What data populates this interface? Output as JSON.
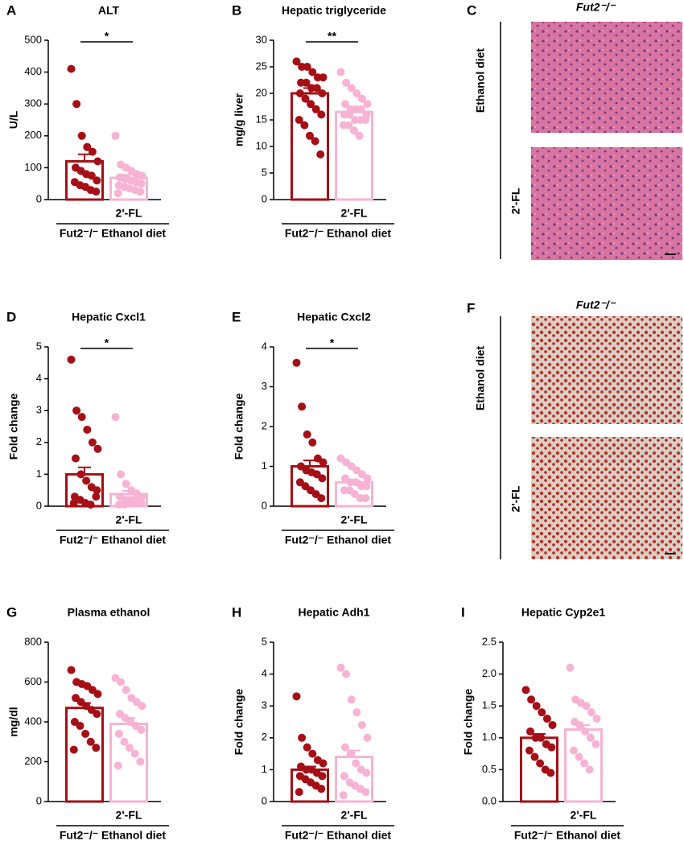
{
  "chart_data": [
    {
      "type": "bar",
      "panel": "A",
      "title": "ALT",
      "ylabel": "U/L",
      "categories": [
        null,
        "2'-FL"
      ],
      "group_label": "Fut2⁻/⁻ Ethanol diet",
      "significance": "*",
      "values": [
        120,
        68
      ],
      "errors": [
        22,
        10
      ],
      "colors": [
        "#a50f15",
        "#f7b3d3"
      ],
      "points": [
        [
          410,
          300,
          200,
          165,
          150,
          120,
          100,
          90,
          80,
          75,
          60,
          55,
          45,
          40,
          30,
          25
        ],
        [
          200,
          110,
          100,
          90,
          80,
          75,
          70,
          65,
          60,
          55,
          50,
          45,
          40,
          35,
          30,
          25,
          20
        ]
      ],
      "ylim": [
        0,
        500
      ],
      "yticks": [
        0,
        100,
        200,
        300,
        400,
        500
      ]
    },
    {
      "type": "bar",
      "panel": "B",
      "title": "Hepatic triglyceride",
      "ylabel": "mg/g liver",
      "categories": [
        null,
        "2'-FL"
      ],
      "group_label": "Fut2⁻/⁻ Ethanol diet",
      "significance": "**",
      "values": [
        20,
        16.5
      ],
      "errors": [
        1,
        0.6
      ],
      "colors": [
        "#a50f15",
        "#f7b3d3"
      ],
      "points": [
        [
          26,
          25,
          25,
          24,
          23,
          23,
          22,
          22,
          21,
          21,
          20,
          20,
          19,
          18,
          17,
          16,
          15,
          14,
          12,
          11,
          8.5
        ],
        [
          24,
          22,
          21,
          20,
          19,
          18,
          18,
          17,
          17,
          17,
          16,
          16,
          16,
          15,
          15,
          15,
          14,
          14,
          13,
          12
        ]
      ],
      "ylim": [
        0,
        30
      ],
      "yticks": [
        0,
        5,
        10,
        15,
        20,
        25,
        30
      ]
    },
    {
      "type": "bar",
      "panel": "D",
      "title": "Hepatic Cxcl1",
      "ylabel": "Fold change",
      "categories": [
        null,
        "2'-FL"
      ],
      "group_label": "Fut2⁻/⁻ Ethanol diet",
      "significance": "*",
      "values": [
        1.0,
        0.38
      ],
      "errors": [
        0.22,
        0.1
      ],
      "colors": [
        "#a50f15",
        "#f7b3d3"
      ],
      "points": [
        [
          4.6,
          3.0,
          2.8,
          2.4,
          2.0,
          1.8,
          1.5,
          1.0,
          0.8,
          0.6,
          0.5,
          0.3,
          0.2,
          0.1,
          0.05,
          0.3,
          0.1
        ],
        [
          2.8,
          1.0,
          0.7,
          0.5,
          0.4,
          0.3,
          0.3,
          0.2,
          0.2,
          0.1,
          0.1,
          0.05,
          0.05,
          0.1,
          0.2
        ]
      ],
      "ylim": [
        0,
        5
      ],
      "yticks": [
        0,
        1,
        2,
        3,
        4,
        5
      ]
    },
    {
      "type": "bar",
      "panel": "E",
      "title": "Hepatic Cxcl2",
      "ylabel": "Fold change",
      "categories": [
        null,
        "2'-FL"
      ],
      "group_label": "Fut2⁻/⁻ Ethanol diet",
      "significance": "*",
      "values": [
        1.0,
        0.6
      ],
      "errors": [
        0.15,
        0.05
      ],
      "colors": [
        "#a50f15",
        "#f7b3d3"
      ],
      "points": [
        [
          3.6,
          2.5,
          1.8,
          1.6,
          1.2,
          1.1,
          1.0,
          0.9,
          0.85,
          0.8,
          0.7,
          0.6,
          0.5,
          0.4,
          0.3,
          0.2
        ],
        [
          1.2,
          1.1,
          1.0,
          0.9,
          0.8,
          0.7,
          0.7,
          0.6,
          0.6,
          0.5,
          0.5,
          0.4,
          0.4,
          0.3,
          0.2,
          0.2
        ]
      ],
      "ylim": [
        0,
        4
      ],
      "yticks": [
        0,
        1,
        2,
        3,
        4
      ]
    },
    {
      "type": "bar",
      "panel": "G",
      "title": "Plasma ethanol",
      "ylabel": "mg/dl",
      "categories": [
        null,
        "2'-FL"
      ],
      "group_label": "Fut2⁻/⁻ Ethanol diet",
      "values": [
        470,
        390
      ],
      "errors": [
        25,
        30
      ],
      "colors": [
        "#a50f15",
        "#f7b3d3"
      ],
      "points": [
        [
          660,
          600,
          590,
          580,
          560,
          540,
          520,
          500,
          480,
          460,
          440,
          400,
          380,
          340,
          300,
          270,
          260
        ],
        [
          620,
          600,
          560,
          520,
          500,
          480,
          440,
          420,
          400,
          380,
          360,
          340,
          300,
          270,
          240,
          200,
          180
        ]
      ],
      "ylim": [
        0,
        800
      ],
      "yticks": [
        0,
        200,
        400,
        600,
        800
      ]
    },
    {
      "type": "bar",
      "panel": "H",
      "title": "Hepatic Adh1",
      "ylabel": "Fold change",
      "categories": [
        null,
        "2'-FL"
      ],
      "group_label": "Fut2⁻/⁻ Ethanol diet",
      "values": [
        1.0,
        1.4
      ],
      "errors": [
        0.1,
        0.2
      ],
      "colors": [
        "#a50f15",
        "#f7b3d3"
      ],
      "points": [
        [
          3.3,
          2.0,
          1.7,
          1.5,
          1.3,
          1.2,
          1.1,
          1.0,
          1.0,
          0.9,
          0.8,
          0.8,
          0.7,
          0.6,
          0.5,
          0.4,
          0.3
        ],
        [
          4.2,
          4.0,
          3.2,
          2.8,
          2.4,
          2.0,
          1.7,
          1.5,
          1.2,
          1.0,
          0.9,
          0.8,
          0.6,
          0.5,
          0.4,
          0.3,
          0.2
        ]
      ],
      "ylim": [
        0,
        5
      ],
      "yticks": [
        0,
        1,
        2,
        3,
        4,
        5
      ]
    },
    {
      "type": "bar",
      "panel": "I",
      "title": "Hepatic Cyp2e1",
      "ylabel": "Fold change",
      "categories": [
        null,
        "2'-FL"
      ],
      "group_label": "Fut2⁻/⁻ Ethanol diet",
      "values": [
        1.0,
        1.13
      ],
      "errors": [
        0.06,
        0.07
      ],
      "colors": [
        "#a50f15",
        "#f7b3d3"
      ],
      "points": [
        [
          1.75,
          1.6,
          1.5,
          1.4,
          1.3,
          1.2,
          1.1,
          1.0,
          1.0,
          0.9,
          0.85,
          0.8,
          0.7,
          0.6,
          0.5,
          0.45
        ],
        [
          2.1,
          1.6,
          1.55,
          1.5,
          1.4,
          1.3,
          1.25,
          1.2,
          1.1,
          1.0,
          0.9,
          0.8,
          0.7,
          0.6,
          0.5
        ]
      ],
      "ylim": [
        0,
        2.5
      ],
      "yticks": [
        {
          "value": 0,
          "label": "0.0"
        },
        {
          "value": 0.5,
          "label": "0.5"
        },
        {
          "value": 1,
          "label": "1.0"
        },
        {
          "value": 1.5,
          "label": "1.5"
        },
        {
          "value": 2,
          "label": "2.0"
        },
        {
          "value": 2.5,
          "label": "2.5"
        }
      ]
    }
  ],
  "image_panels": [
    {
      "panel": "C",
      "title": "Fut2⁻/⁻",
      "labels": [
        "Ethanol diet",
        "2'-FL"
      ]
    },
    {
      "panel": "F",
      "title": "Fut2⁻/⁻",
      "labels": [
        "Ethanol diet",
        "2'-FL"
      ]
    }
  ]
}
